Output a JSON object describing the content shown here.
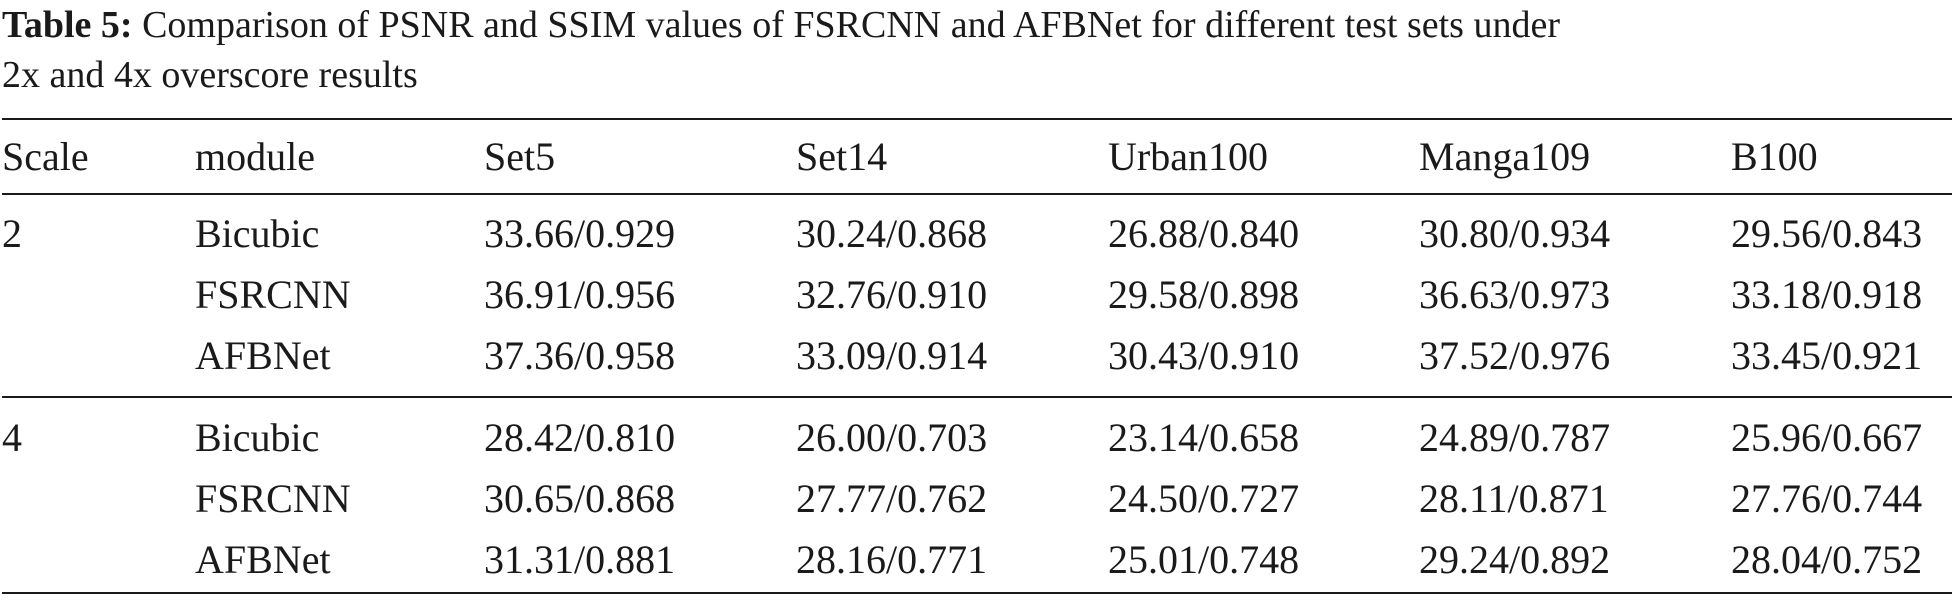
{
  "caption": {
    "label": "Table 5:",
    "text_line1": " Comparison of PSNR and SSIM values of FSRCNN and AFBNet for different test sets under",
    "text_line2": "2x and 4x overscore results"
  },
  "table": {
    "headers": [
      "Scale",
      "module",
      "Set5",
      "Set14",
      "Urban100",
      "Manga109",
      "B100"
    ],
    "groups": [
      {
        "scale": "2",
        "rows": [
          {
            "module": "Bicubic",
            "values": [
              "33.66/0.929",
              "30.24/0.868",
              "26.88/0.840",
              "30.80/0.934",
              "29.56/0.843"
            ]
          },
          {
            "module": "FSRCNN",
            "values": [
              "36.91/0.956",
              "32.76/0.910",
              "29.58/0.898",
              "36.63/0.973",
              "33.18/0.918"
            ]
          },
          {
            "module": "AFBNet",
            "values": [
              "37.36/0.958",
              "33.09/0.914",
              "30.43/0.910",
              "37.52/0.976",
              "33.45/0.921"
            ]
          }
        ]
      },
      {
        "scale": "4",
        "rows": [
          {
            "module": "Bicubic",
            "values": [
              "28.42/0.810",
              "26.00/0.703",
              "23.14/0.658",
              "24.89/0.787",
              "25.96/0.667"
            ]
          },
          {
            "module": "FSRCNN",
            "values": [
              "30.65/0.868",
              "27.77/0.762",
              "24.50/0.727",
              "28.11/0.871",
              "27.76/0.744"
            ]
          },
          {
            "module": "AFBNet",
            "values": [
              "31.31/0.881",
              "28.16/0.771",
              "25.01/0.748",
              "29.24/0.892",
              "28.04/0.752"
            ]
          }
        ]
      }
    ]
  }
}
